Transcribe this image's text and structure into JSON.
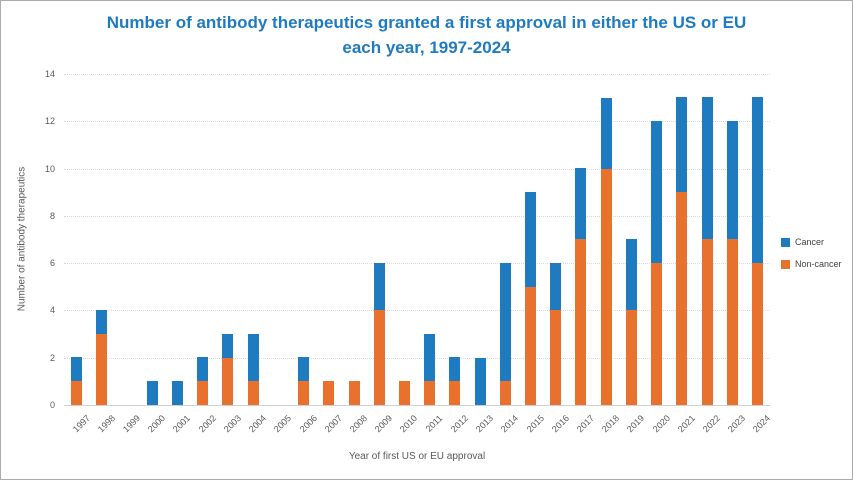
{
  "chart_data": {
    "type": "bar",
    "stacked": true,
    "title": "Number of antibody therapeutics granted a first approval in either the US or EU each year, 1997-2024",
    "title_color": "#1F7BC0",
    "xlabel": "Year of first US or EU approval",
    "ylabel": "Number of antibody therapeutics",
    "categories": [
      "1997",
      "1998",
      "1999",
      "2000",
      "2001",
      "2002",
      "2003",
      "2004",
      "2005",
      "2006",
      "2007",
      "2008",
      "2009",
      "2010",
      "2011",
      "2012",
      "2013",
      "2014",
      "2015",
      "2016",
      "2017",
      "2018",
      "2019",
      "2020",
      "2021",
      "2022",
      "2023",
      "2024"
    ],
    "series": [
      {
        "name": "Cancer",
        "color": "#1F7BC0",
        "stack_position": "top",
        "values": [
          1,
          1,
          0,
          1,
          1,
          1,
          1,
          2,
          0,
          1,
          0,
          0,
          2,
          0,
          2,
          1,
          2,
          5,
          4,
          2,
          3,
          3,
          3,
          6,
          4,
          6,
          5,
          7
        ]
      },
      {
        "name": "Non-cancer",
        "color": "#E8712E",
        "stack_position": "bottom",
        "values": [
          1,
          3,
          0,
          0,
          0,
          1,
          2,
          1,
          0,
          1,
          1,
          1,
          4,
          1,
          1,
          1,
          0,
          1,
          5,
          4,
          7,
          10,
          4,
          6,
          9,
          7,
          7,
          6
        ]
      }
    ],
    "ylim": [
      0,
      14
    ],
    "yticks": [
      0,
      2,
      4,
      6,
      8,
      10,
      12,
      14
    ],
    "grid": true,
    "gridline_color": "#D9D9D9",
    "axis_text_color": "#595959",
    "legend_position": "right"
  }
}
